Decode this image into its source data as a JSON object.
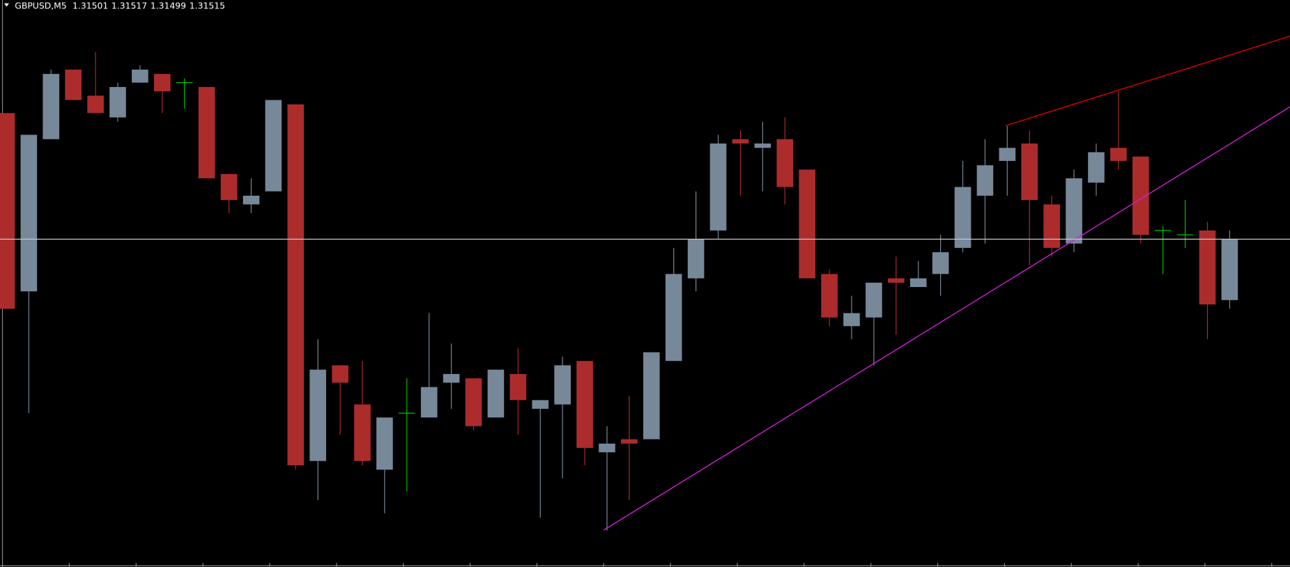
{
  "header": {
    "symbol": "GBPUSD,M5",
    "open": 1.31501,
    "high": 1.31517,
    "low": 1.31499,
    "close": 1.31515
  },
  "chart_data": {
    "type": "candlestick",
    "open": [
      1.31544,
      1.31503,
      1.31538,
      1.31554,
      1.31548,
      1.31543,
      1.31551,
      1.31553,
      1.31551,
      1.3155,
      1.3153,
      1.31523,
      1.31526,
      1.31546,
      1.31464,
      1.31486,
      1.31477,
      1.31462,
      1.31475,
      1.31474,
      1.31482,
      1.31483,
      1.31474,
      1.31484,
      1.31476,
      1.31477,
      1.31487,
      1.31466,
      1.31469,
      1.31469,
      1.31487,
      1.31506,
      1.31517,
      1.31538,
      1.31536,
      1.31538,
      1.31531,
      1.31507,
      1.31495,
      1.31497,
      1.31506,
      1.31504,
      1.31507,
      1.31513,
      1.31525,
      1.31533,
      1.31537,
      1.31523,
      1.31514,
      1.31528,
      1.31536,
      1.31534,
      1.31517,
      1.31516,
      1.31517,
      1.31501
    ],
    "high": [
      1.31544,
      1.31539,
      1.31554,
      1.31554,
      1.31558,
      1.31551,
      1.31555,
      1.31553,
      1.31552,
      1.3155,
      1.3153,
      1.31529,
      1.31547,
      1.31546,
      1.31492,
      1.31486,
      1.31487,
      1.31474,
      1.31483,
      1.31498,
      1.31491,
      1.31483,
      1.31485,
      1.3149,
      1.31478,
      1.31488,
      1.31487,
      1.31472,
      1.31479,
      1.31489,
      1.31513,
      1.31526,
      1.31539,
      1.3154,
      1.31542,
      1.31543,
      1.31531,
      1.31508,
      1.31502,
      1.31505,
      1.31511,
      1.3151,
      1.31516,
      1.31533,
      1.31538,
      1.31541,
      1.3154,
      1.31525,
      1.31531,
      1.31537,
      1.31549,
      1.31534,
      1.31518,
      1.31524,
      1.31519,
      1.31517
    ],
    "low": [
      1.31499,
      1.31475,
      1.31538,
      1.31547,
      1.31544,
      1.31542,
      1.31551,
      1.31544,
      1.31545,
      1.31529,
      1.31521,
      1.31521,
      1.31526,
      1.31462,
      1.31455,
      1.3147,
      1.31463,
      1.31452,
      1.31457,
      1.31474,
      1.31476,
      1.31471,
      1.31474,
      1.3147,
      1.31451,
      1.3146,
      1.31463,
      1.31448,
      1.31455,
      1.31469,
      1.31487,
      1.31503,
      1.31515,
      1.31525,
      1.31526,
      1.31523,
      1.31506,
      1.31495,
      1.31492,
      1.31486,
      1.31493,
      1.31504,
      1.31502,
      1.31512,
      1.31514,
      1.31525,
      1.31509,
      1.31511,
      1.31512,
      1.31525,
      1.31531,
      1.31514,
      1.31507,
      1.31513,
      1.31492,
      1.31499
    ],
    "close": [
      1.31499,
      1.31539,
      1.31553,
      1.31547,
      1.31544,
      1.3155,
      1.31554,
      1.31549,
      1.31551,
      1.31529,
      1.31524,
      1.31525,
      1.31547,
      1.31463,
      1.31485,
      1.31482,
      1.31464,
      1.31474,
      1.31475,
      1.31481,
      1.31484,
      1.31472,
      1.31485,
      1.31478,
      1.31478,
      1.31486,
      1.31467,
      1.31468,
      1.31468,
      1.31489,
      1.31507,
      1.31515,
      1.31537,
      1.31537,
      1.31537,
      1.31527,
      1.31506,
      1.31497,
      1.31498,
      1.31505,
      1.31505,
      1.31506,
      1.31512,
      1.31527,
      1.31532,
      1.31536,
      1.31524,
      1.31513,
      1.31529,
      1.31535,
      1.31533,
      1.31516,
      1.31517,
      1.31516,
      1.315,
      1.31515
    ],
    "ylim": [
      1.3144,
      1.3157
    ],
    "colors": {
      "up": "#778899",
      "down": "#ac2c2c",
      "doji": "#00c000"
    }
  }
}
